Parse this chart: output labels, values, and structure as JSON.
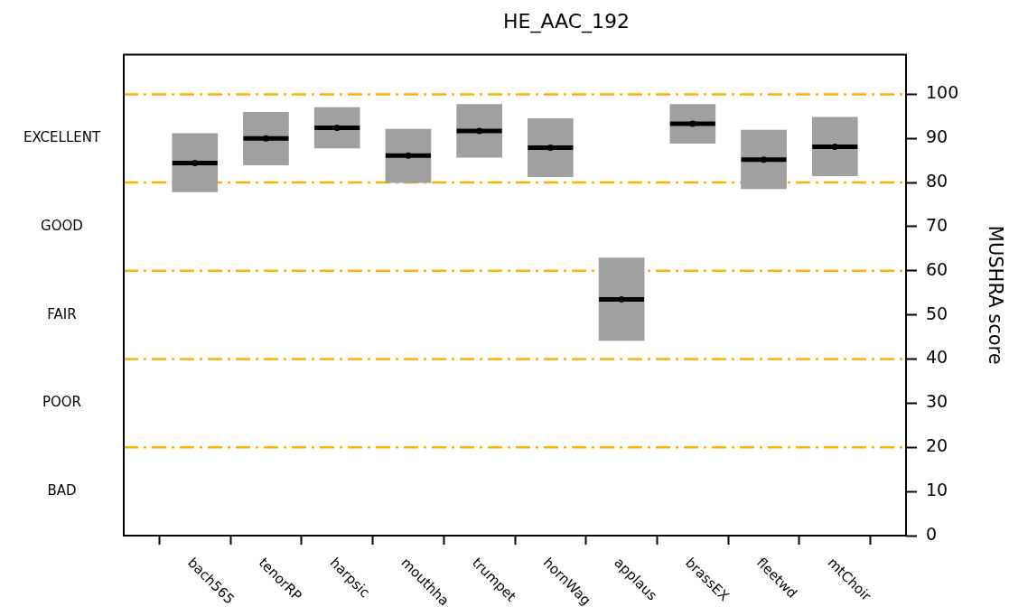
{
  "chart_data": {
    "type": "box",
    "title": "HE_AAC_192",
    "ylabel": "MUSHRA score",
    "categories": [
      "bach565",
      "tenorRP",
      "harpsic",
      "mouthha",
      "trumpet",
      "hornWag",
      "applaus",
      "brassEX",
      "fleetwd",
      "mtChoir"
    ],
    "series": [
      {
        "color": "#a0a0a0",
        "boxes": [
          {
            "low": 77.9,
            "q1": 77.9,
            "median": 84.4,
            "q3": 91.1,
            "high": 91.1,
            "mean": 84.4
          },
          {
            "low": 84.0,
            "q1": 84.0,
            "median": 90.0,
            "q3": 95.9,
            "high": 95.9,
            "mean": 90.0
          },
          {
            "low": 87.8,
            "q1": 87.8,
            "median": 92.4,
            "q3": 97.0,
            "high": 97.0,
            "mean": 92.4
          },
          {
            "low": 80.0,
            "q1": 80.0,
            "median": 86.1,
            "q3": 92.1,
            "high": 92.1,
            "mean": 86.1
          },
          {
            "low": 85.7,
            "q1": 85.7,
            "median": 91.7,
            "q3": 97.7,
            "high": 97.7,
            "mean": 91.7
          },
          {
            "low": 81.3,
            "q1": 81.3,
            "median": 87.9,
            "q3": 94.5,
            "high": 94.5,
            "mean": 87.9
          },
          {
            "low": 44.2,
            "q1": 44.2,
            "median": 53.5,
            "q3": 62.9,
            "high": 62.9,
            "mean": 53.5
          },
          {
            "low": 88.9,
            "q1": 88.9,
            "median": 93.3,
            "q3": 97.7,
            "high": 97.7,
            "mean": 93.3
          },
          {
            "low": 78.6,
            "q1": 78.6,
            "median": 85.2,
            "q3": 91.9,
            "high": 91.9,
            "mean": 85.2
          },
          {
            "low": 81.5,
            "q1": 81.5,
            "median": 88.1,
            "q3": 94.8,
            "high": 94.8,
            "mean": 88.1
          }
        ]
      }
    ],
    "ylim": [
      0,
      109
    ],
    "yticks": [
      0,
      10,
      20,
      30,
      40,
      50,
      60,
      70,
      80,
      90,
      100
    ],
    "annotations": [
      "BAD",
      "POOR",
      "FAIR",
      "GOOD",
      "EXCELLENT"
    ],
    "ref_lines": [
      {
        "axis": "y",
        "value": 20,
        "color": "#ffb000",
        "line_style": "dashed"
      },
      {
        "axis": "y",
        "value": 40,
        "color": "#ffb000",
        "line_style": "dashed"
      },
      {
        "axis": "y",
        "value": 60,
        "color": "#ffb000",
        "line_style": "dashed"
      },
      {
        "axis": "y",
        "value": 80,
        "color": "#ffb000",
        "line_style": "dashed"
      },
      {
        "axis": "y",
        "value": 100,
        "color": "#ffb000",
        "line_style": "dashed"
      }
    ],
    "grid": false,
    "legend": false
  }
}
